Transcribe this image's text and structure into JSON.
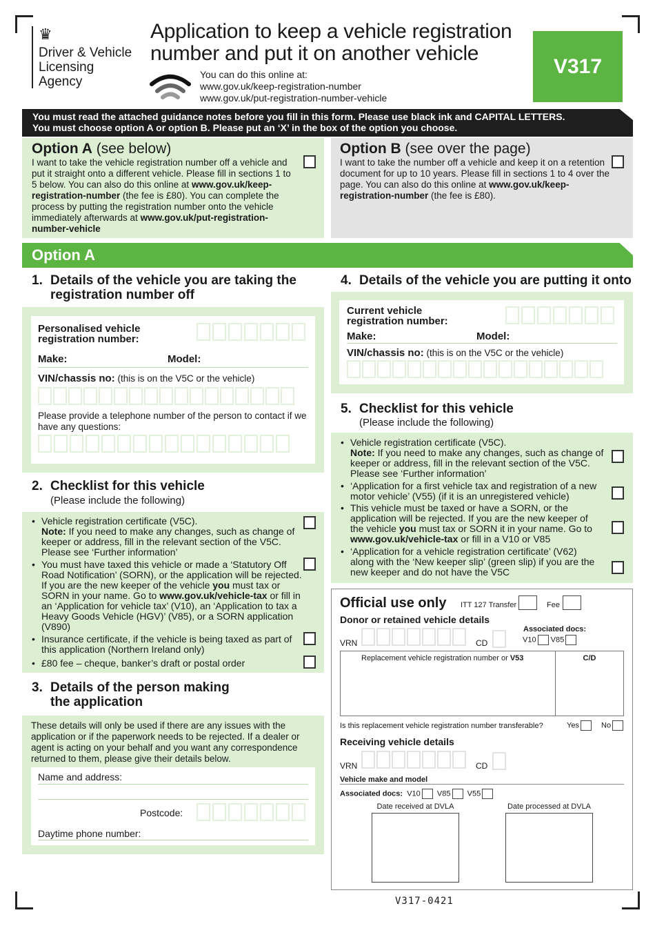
{
  "header": {
    "agency_lines": [
      "Driver & Vehicle",
      "Licensing",
      "Agency"
    ],
    "title_lines": [
      "Application to keep a vehicle registration",
      "number and put it on another vehicle"
    ],
    "online_label": "You can do this online at:",
    "online_url_1": "www.gov.uk/keep-registration-number",
    "online_url_2": "www.gov.uk/put-registration-number-vehicle",
    "form_code": "V317",
    "brand_color": "#5cb443"
  },
  "notice": {
    "line1": "You must read the attached guidance notes before you fill in this form. Please use black ink and CAPITAL LETTERS.",
    "line2": "You must choose option A or option B. Please put an ‘X’ in the box of the option you choose."
  },
  "option_a": {
    "title": "Option A",
    "subtitle": "(see below)",
    "text": [
      {
        "t": "I want to take the vehicle registration number off a vehicle and put it straight onto a different vehicle. Please fill in sections 1 to 5 below. You can also do this online at ",
        "b": false
      },
      {
        "t": "www.gov.uk/keep-registration-number",
        "b": true
      },
      {
        "t": " (the fee is £80). You can complete the process by putting the registration number onto the vehicle immediately afterwards at ",
        "b": false
      },
      {
        "t": "www.gov.uk/put-registration-number-vehicle",
        "b": true
      }
    ]
  },
  "option_b": {
    "title": "Option B",
    "subtitle": "(see over the page)",
    "text": [
      {
        "t": "I want to take the number off a vehicle and keep it on a retention document for up to 10 years. Please fill in sections 1 to 4 over the page. You can also do this online at ",
        "b": false
      },
      {
        "t": "www.gov.uk/keep-registration-number",
        "b": true
      },
      {
        "t": " (the fee is £80).",
        "b": false
      }
    ]
  },
  "banner": "Option A",
  "s1": {
    "num": "1.",
    "title": "Details of the vehicle you are taking the registration number off",
    "reg_label": "Personalised vehicle registration number:",
    "make": "Make:",
    "model": "Model:",
    "vin_label": "VIN/chassis no:",
    "vin_note": "(this is on the V5C or the vehicle)",
    "phone_label": "Please provide a telephone number of the person to contact if we have any questions:"
  },
  "s2": {
    "num": "2.",
    "title": "Checklist for this vehicle",
    "subtitle": "(Please include the following)",
    "items": [
      [
        {
          "t": "Vehicle registration certificate (V5C).\n",
          "b": false
        },
        {
          "t": "Note:",
          "b": true
        },
        {
          "t": " If you need to make any changes, such as change of keeper or address, fill in the relevant section of the V5C. Please see ‘Further information’",
          "b": false
        }
      ],
      [
        {
          "t": "You must have taxed this vehicle or made a ‘Statutory Off Road Notification’ (SORN), or the application will be rejected. If you are the new keeper of the vehicle ",
          "b": false
        },
        {
          "t": "you",
          "b": true
        },
        {
          "t": " must tax or SORN in your name. Go to ",
          "b": false
        },
        {
          "t": "www.gov.uk/vehicle-tax",
          "b": true
        },
        {
          "t": " or fill in an ‘Application for vehicle tax’ (V10), an ‘Application to tax a Heavy Goods Vehicle (HGV)’ (V85), or a SORN application (V890)",
          "b": false
        }
      ],
      [
        {
          "t": "Insurance certificate, if the vehicle is being taxed as part of this application (Northern Ireland only)",
          "b": false
        }
      ],
      [
        {
          "t": "£80 fee – cheque, banker’s draft or postal order",
          "b": false
        }
      ]
    ]
  },
  "s3": {
    "num": "3.",
    "title": "Details of the person making the application",
    "intro": "These details will only be used if there are any issues with the application or if the paperwork needs to be rejected. If a dealer or agent is acting on your behalf and you want any correspondence returned to them, please give their details below.",
    "name_label": "Name and address:",
    "postcode_label": "Postcode:",
    "phone_label": "Daytime phone number:"
  },
  "s4": {
    "num": "4.",
    "title": "Details of the vehicle you are putting it onto",
    "reg_label": "Current vehicle registration number:",
    "make": "Make:",
    "model": "Model:",
    "vin_label": "VIN/chassis no:",
    "vin_note": "(this is on the V5C or the vehicle)"
  },
  "s5": {
    "num": "5.",
    "title": "Checklist for this vehicle",
    "subtitle": "(Please include the following)",
    "items": [
      [
        {
          "t": "Vehicle registration certificate (V5C).\n",
          "b": false
        },
        {
          "t": "Note:",
          "b": true
        },
        {
          "t": " If you need to make any changes, such as change of keeper or address, fill in the relevant section of the V5C. Please see ‘Further information’",
          "b": false
        }
      ],
      [
        {
          "t": "‘Application for a first vehicle tax and registration of a new motor vehicle’ (V55) (if it is an unregistered vehicle)",
          "b": false
        }
      ],
      [
        {
          "t": "This vehicle must be taxed or have a SORN, or the application will be rejected. If you are the new keeper of the vehicle ",
          "b": false
        },
        {
          "t": "you",
          "b": true
        },
        {
          "t": " must tax or SORN it in your name. Go to ",
          "b": false
        },
        {
          "t": "www.gov.uk/vehicle-tax",
          "b": true
        },
        {
          "t": " or fill in a V10 or V85",
          "b": false
        }
      ],
      [
        {
          "t": "‘Application for a vehicle registration certificate’ (V62) along with the ‘New keeper slip’ (green slip) if you are the new keeper and do not have the V5C",
          "b": false
        }
      ]
    ]
  },
  "official": {
    "title": "Official use only",
    "itt": "ITT 127 Transfer",
    "fee": "Fee",
    "donor": "Donor or retained vehicle details",
    "vrn": "VRN",
    "cd": "CD",
    "assoc": "Associated docs:",
    "v10": "V10",
    "v85": "V85",
    "v55": "V55",
    "replacement": "Replacement vehicle registration number or ",
    "v53": "V53",
    "cd_col": "C/D",
    "transferable": "Is this replacement vehicle registration number transferable?",
    "yes": "Yes",
    "no": "No",
    "receiving": "Receiving vehicle details",
    "make_model": "Vehicle make and model",
    "date_received": "Date received at DVLA",
    "date_processed": "Date processed at DVLA"
  },
  "footer_code": "V317-0421"
}
